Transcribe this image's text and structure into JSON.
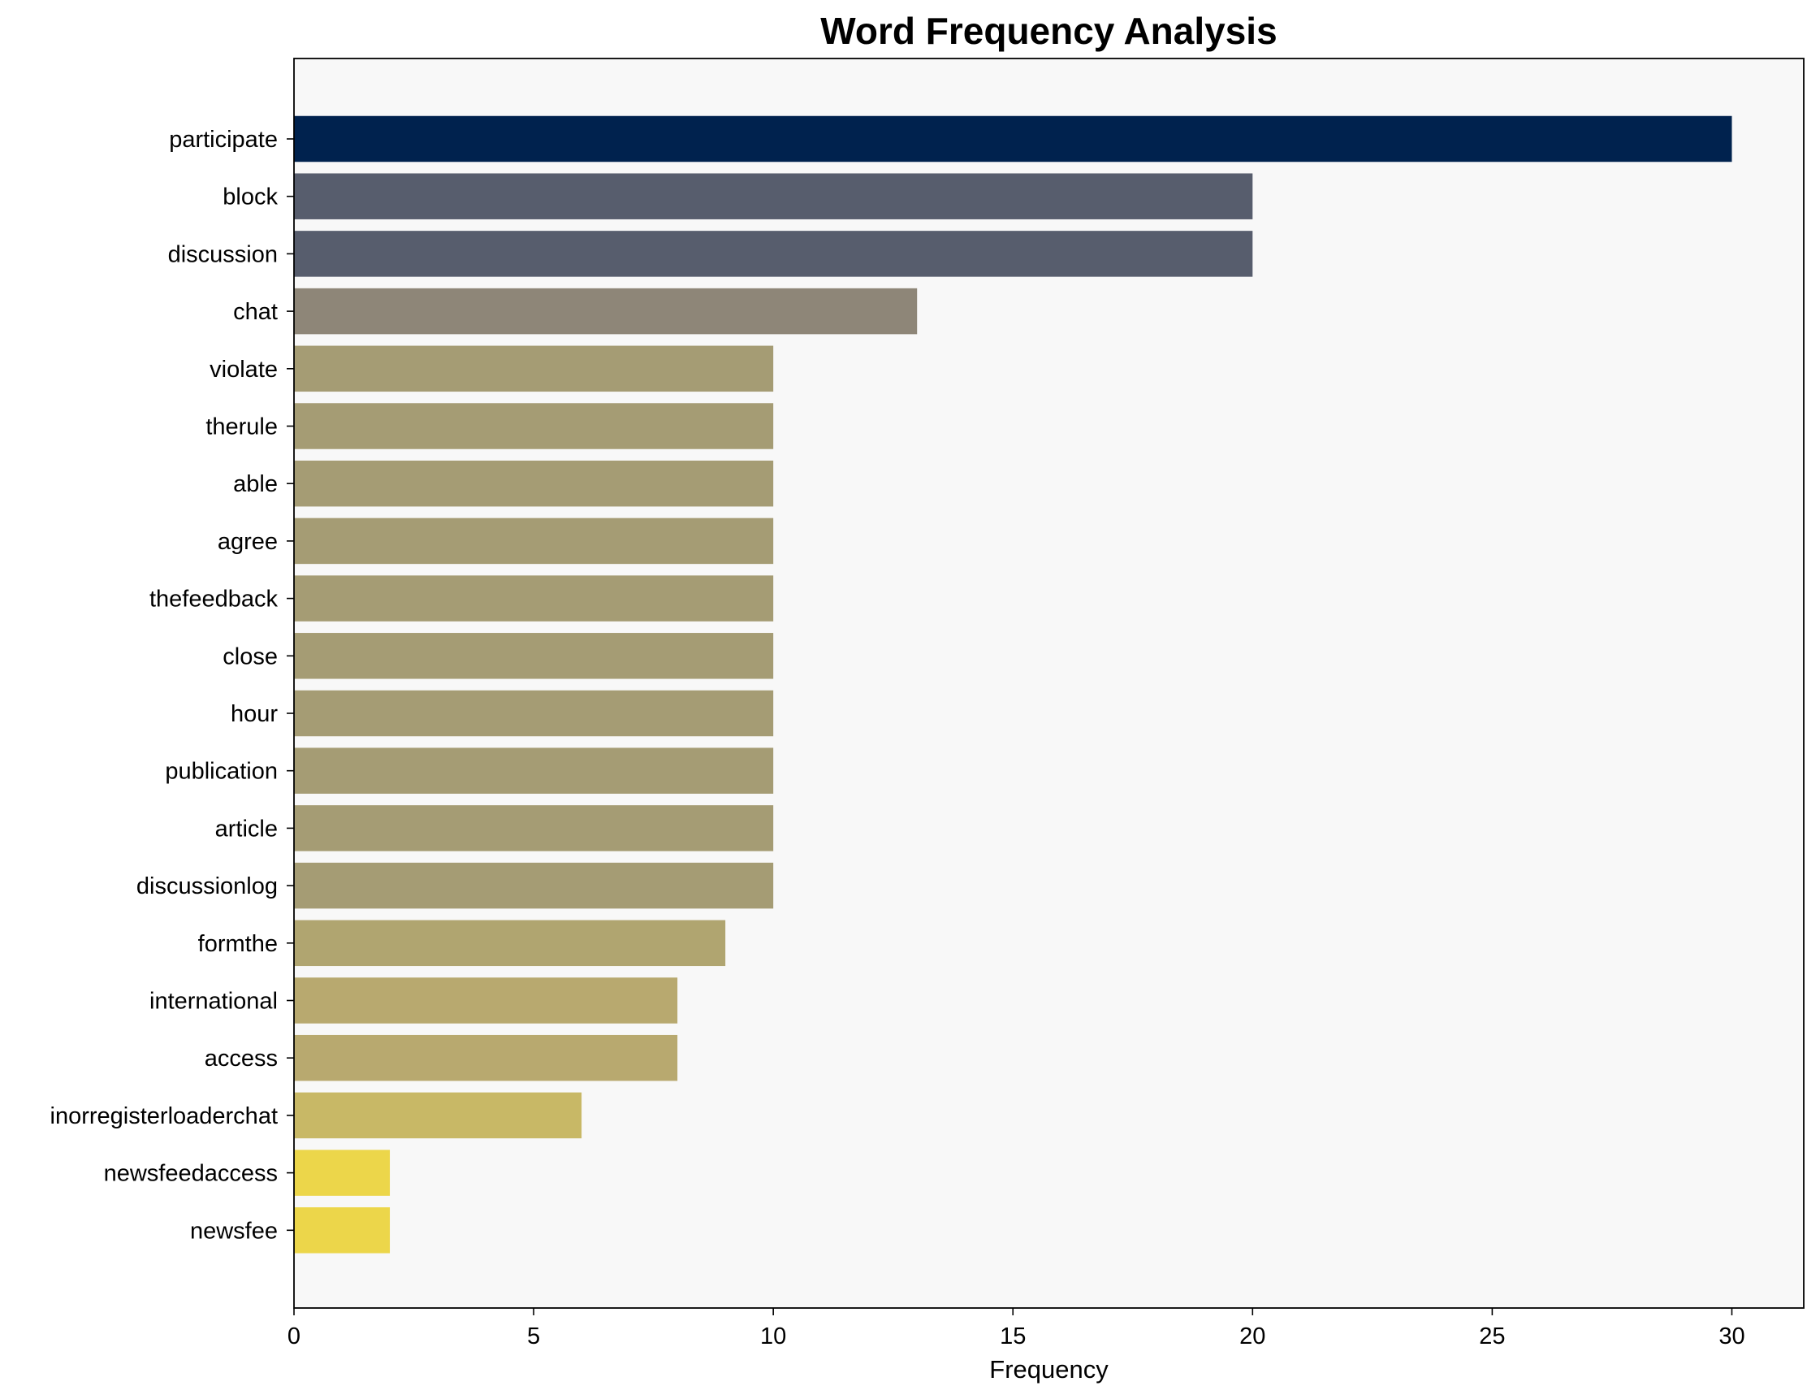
{
  "chart_data": {
    "type": "bar",
    "orientation": "horizontal",
    "title": "Word Frequency Analysis",
    "xlabel": "Frequency",
    "ylabel": "",
    "xlim": [
      0,
      31.5
    ],
    "xticks": [
      0,
      5,
      10,
      15,
      20,
      25,
      30
    ],
    "grid": false,
    "categories": [
      "participate",
      "block",
      "discussion",
      "chat",
      "violate",
      "therule",
      "able",
      "agree",
      "thefeedback",
      "close",
      "hour",
      "publication",
      "article",
      "discussionlog",
      "formthe",
      "international",
      "access",
      "inorregisterloaderchat",
      "newsfeedaccess",
      "newsfee"
    ],
    "values": [
      30,
      20,
      20,
      13,
      10,
      10,
      10,
      10,
      10,
      10,
      10,
      10,
      10,
      10,
      9,
      8,
      8,
      6,
      2,
      2
    ],
    "colors": [
      "#00224e",
      "#575d6d",
      "#575d6d",
      "#8e8678",
      "#a59c74",
      "#a59c74",
      "#a59c74",
      "#a59c74",
      "#a59c74",
      "#a59c74",
      "#a59c74",
      "#a59c74",
      "#a59c74",
      "#a59c74",
      "#b0a570",
      "#b8a96f",
      "#b8a96f",
      "#c8b866",
      "#ecd64a",
      "#ecd64a"
    ],
    "plot_background": "#f8f8f8"
  }
}
